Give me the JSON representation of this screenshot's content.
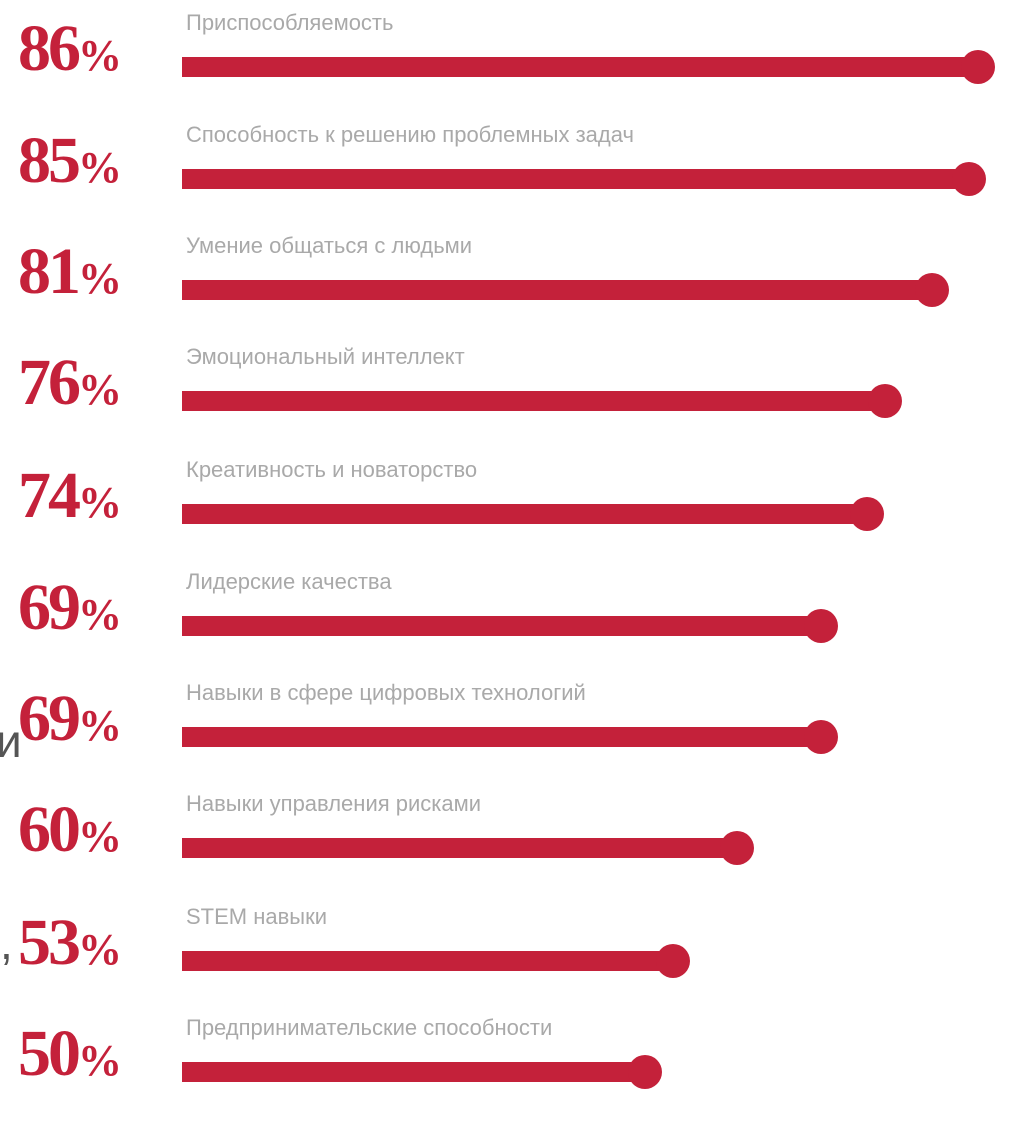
{
  "colors": {
    "accent": "#c4213a",
    "label": "#a9a9a9",
    "background": "#ffffff"
  },
  "chart_data": {
    "type": "bar",
    "orientation": "horizontal",
    "unit": "%",
    "categories": [
      "Приспособляемость",
      "Способность к решению проблемных задач",
      "Умение общаться с людьми",
      "Эмоциональный интеллект",
      "Креативность и новаторство",
      "Лидерские качества",
      "Навыки в сфере цифровых технологий",
      "Навыки управления рисками",
      "STEM навыки",
      "Предпринимательские способности"
    ],
    "values": [
      86,
      85,
      81,
      76,
      74,
      69,
      69,
      60,
      53,
      50
    ],
    "value_labels": [
      "86",
      "85",
      "81",
      "76",
      "74",
      "69",
      "69",
      "60",
      "53",
      "50"
    ],
    "percent_sign": "%",
    "xlim": [
      0,
      100
    ],
    "grid": false,
    "legend": "none"
  },
  "edge_text": {
    "left_fragment_1": "и",
    "left_fragment_2": ","
  }
}
